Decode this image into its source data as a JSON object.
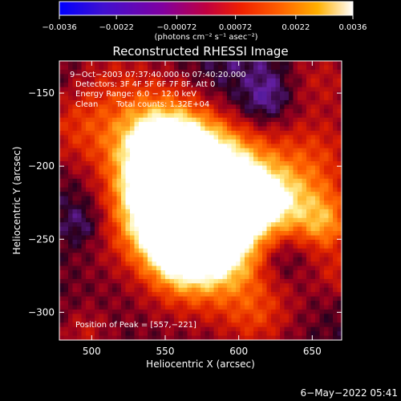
{
  "chart_data": {
    "type": "heatmap",
    "title": "Reconstructed RHESSI Image",
    "xlabel": "Heliocentric X (arcsec)",
    "ylabel": "Heliocentric Y (arcsec)",
    "xlim": [
      478,
      670
    ],
    "ylim": [
      -319,
      -128
    ],
    "x_ticks": [
      500,
      550,
      600,
      650
    ],
    "x_tick_labels": [
      "500",
      "550",
      "600",
      "650"
    ],
    "y_ticks": [
      -150,
      -200,
      -250,
      -300
    ],
    "y_tick_labels": [
      "−150",
      "−200",
      "−250",
      "−300"
    ],
    "colorbar": {
      "range": [
        -0.0036,
        0.0036
      ],
      "ticks": [
        -0.0036,
        -0.0022,
        -0.00072,
        0.00072,
        0.0022,
        0.0036
      ],
      "tick_labels": [
        "−0.0036",
        "−0.0022",
        "−0.00072",
        "0.00072",
        "0.0022",
        "0.0036"
      ],
      "unit_label": "(photons cm⁻² s⁻¹ asec⁻²)",
      "colors": [
        "#0000ff",
        "#5010c0",
        "#9000a0",
        "#c00040",
        "#f02000",
        "#ff6000",
        "#ffb000",
        "#ffff90",
        "#ffffff"
      ]
    },
    "annotations": {
      "time_range": "9−Oct−2003 07:37:40.000 to 07:40:20.000",
      "detectors": "Detectors: 3F 4F 5F 6F 7F 8F, Att 0",
      "energy_range": "Energy Range: 6.0 − 12.0 keV",
      "method": "Clean",
      "total_counts": "Total counts: 1.32E+04",
      "peak_position": "Position of Peak = [557,−221]"
    },
    "peak": {
      "x": 557,
      "y": -221
    },
    "grid": false,
    "legend": "colorbar-top"
  },
  "footer": {
    "date": "6−May−2022 05:41"
  }
}
